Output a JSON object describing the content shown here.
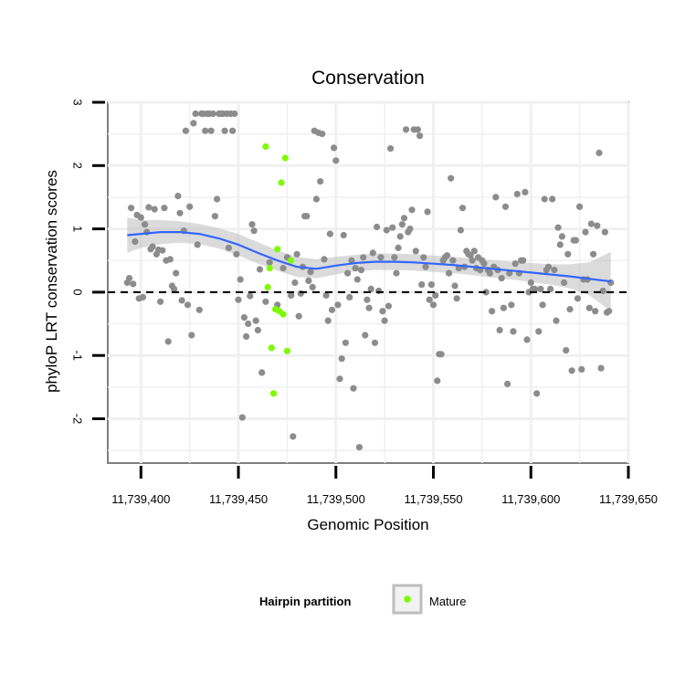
{
  "chart_data": {
    "type": "scatter",
    "title": "Conservation",
    "xlabel": "Genomic Position",
    "ylabel": "phyloP LRT conservation scores",
    "xlim": [
      11739383,
      11739650
    ],
    "ylim": [
      -2.7,
      3.0
    ],
    "grid": true,
    "x_ticks": [
      11739400,
      11739450,
      11739500,
      11739550,
      11739600,
      11739650
    ],
    "x_tick_labels": [
      "11,739,400",
      "11,739,450",
      "11,739,500",
      "11,739,550",
      "11,739,600",
      "11,739,650"
    ],
    "y_ticks": [
      -2,
      -1,
      0,
      1,
      2,
      3
    ],
    "y_tick_labels": [
      "-2",
      "-1",
      "0",
      "1",
      "2",
      "3"
    ],
    "reference_line": {
      "y": 0,
      "style": "dashed",
      "color": "#000000"
    },
    "colors": {
      "other": "#8c8c8c",
      "mature": "#7cfc00",
      "smooth": "#3366ff",
      "ribbon": "#bdbdbd",
      "panel_grid": "#f0f0f0",
      "frame": "#7f7f7f"
    },
    "legend": {
      "title": "Hairpin partition",
      "entries": [
        "Mature"
      ],
      "position": "bottom"
    },
    "series": [
      {
        "name": "",
        "color": "#8c8c8c",
        "points": [
          [
            11739393,
            0.15
          ],
          [
            11739394,
            0.22
          ],
          [
            11739395,
            1.33
          ],
          [
            11739396,
            0.13
          ],
          [
            11739397,
            0.8
          ],
          [
            11739398,
            1.22
          ],
          [
            11739399,
            -0.1
          ],
          [
            11739400,
            1.18
          ],
          [
            11739401,
            -0.08
          ],
          [
            11739402,
            1.07
          ],
          [
            11739403,
            0.95
          ],
          [
            11739404,
            1.34
          ],
          [
            11739405,
            0.68
          ],
          [
            11739406,
            0.72
          ],
          [
            11739407,
            1.31
          ],
          [
            11739408,
            0.6
          ],
          [
            11739409,
            0.67
          ],
          [
            11739410,
            -0.15
          ],
          [
            11739411,
            0.66
          ],
          [
            11739412,
            1.33
          ],
          [
            11739413,
            0.5
          ],
          [
            11739414,
            -0.78
          ],
          [
            11739415,
            0.52
          ],
          [
            11739416,
            0.1
          ],
          [
            11739417,
            0.05
          ],
          [
            11739418,
            0.3
          ],
          [
            11739419,
            1.52
          ],
          [
            11739420,
            1.25
          ],
          [
            11739421,
            -0.13
          ],
          [
            11739422,
            0.97
          ],
          [
            11739423,
            2.55
          ],
          [
            11739424,
            -0.2
          ],
          [
            11739425,
            1.35
          ],
          [
            11739426,
            -0.68
          ],
          [
            11739427,
            2.67
          ],
          [
            11739428,
            2.82
          ],
          [
            11739429,
            0.75
          ],
          [
            11739430,
            -0.28
          ],
          [
            11739431,
            2.82
          ],
          [
            11739432,
            2.82
          ],
          [
            11739433,
            2.55
          ],
          [
            11739434,
            2.82
          ],
          [
            11739435,
            2.82
          ],
          [
            11739436,
            2.55
          ],
          [
            11739437,
            2.82
          ],
          [
            11739438,
            1.2
          ],
          [
            11739439,
            1.47
          ],
          [
            11739440,
            2.82
          ],
          [
            11739441,
            2.82
          ],
          [
            11739442,
            2.82
          ],
          [
            11739443,
            2.55
          ],
          [
            11739444,
            2.82
          ],
          [
            11739445,
            0.7
          ],
          [
            11739446,
            2.82
          ],
          [
            11739447,
            2.55
          ],
          [
            11739448,
            2.82
          ],
          [
            11739449,
            0.6
          ],
          [
            11739450,
            -0.12
          ],
          [
            11739451,
            0.2
          ],
          [
            11739452,
            -1.98
          ],
          [
            11739453,
            -0.4
          ],
          [
            11739454,
            -0.7
          ],
          [
            11739455,
            -0.5
          ],
          [
            11739456,
            -0.06
          ],
          [
            11739457,
            1.07
          ],
          [
            11739458,
            0.97
          ],
          [
            11739459,
            -0.45
          ],
          [
            11739460,
            -0.6
          ],
          [
            11739461,
            0.36
          ],
          [
            11739462,
            -1.27
          ],
          [
            11739464,
            -0.15
          ],
          [
            11739466,
            0.47
          ],
          [
            11739470,
            -0.2
          ],
          [
            11739473,
            0.38
          ],
          [
            11739475,
            0.55
          ],
          [
            11739477,
            -0.05
          ],
          [
            11739478,
            -2.28
          ],
          [
            11739479,
            0.15
          ],
          [
            11739480,
            0.6
          ],
          [
            11739481,
            -0.38
          ],
          [
            11739482,
            -0.02
          ],
          [
            11739483,
            0.4
          ],
          [
            11739484,
            1.2
          ],
          [
            11739485,
            1.2
          ],
          [
            11739486,
            0.18
          ],
          [
            11739487,
            0.32
          ],
          [
            11739488,
            0.08
          ],
          [
            11739489,
            2.55
          ],
          [
            11739490,
            1.47
          ],
          [
            11739491,
            2.52
          ],
          [
            11739492,
            1.75
          ],
          [
            11739493,
            2.5
          ],
          [
            11739494,
            0.52
          ],
          [
            11739495,
            -0.05
          ],
          [
            11739496,
            -0.45
          ],
          [
            11739497,
            0.92
          ],
          [
            11739498,
            -0.28
          ],
          [
            11739499,
            2.28
          ],
          [
            11739500,
            2.08
          ],
          [
            11739501,
            -0.2
          ],
          [
            11739502,
            -1.37
          ],
          [
            11739503,
            -1.05
          ],
          [
            11739504,
            0.9
          ],
          [
            11739505,
            -0.8
          ],
          [
            11739506,
            0.3
          ],
          [
            11739507,
            -0.08
          ],
          [
            11739508,
            0.5
          ],
          [
            11739509,
            -1.52
          ],
          [
            11739510,
            0.38
          ],
          [
            11739511,
            0.2
          ],
          [
            11739512,
            -2.45
          ],
          [
            11739513,
            0.35
          ],
          [
            11739514,
            0.55
          ],
          [
            11739515,
            -0.68
          ],
          [
            11739516,
            -0.12
          ],
          [
            11739517,
            -0.25
          ],
          [
            11739518,
            0.05
          ],
          [
            11739519,
            0.62
          ],
          [
            11739520,
            -0.8
          ],
          [
            11739521,
            1.03
          ],
          [
            11739522,
            0.02
          ],
          [
            11739523,
            0.55
          ],
          [
            11739524,
            -0.3
          ],
          [
            11739525,
            -0.45
          ],
          [
            11739526,
            0.98
          ],
          [
            11739527,
            -0.22
          ],
          [
            11739528,
            2.27
          ],
          [
            11739529,
            1.02
          ],
          [
            11739530,
            0.55
          ],
          [
            11739531,
            0.3
          ],
          [
            11739532,
            0.7
          ],
          [
            11739533,
            0.88
          ],
          [
            11739534,
            1.07
          ],
          [
            11739535,
            1.17
          ],
          [
            11739536,
            2.57
          ],
          [
            11739537,
            0.95
          ],
          [
            11739538,
            1.0
          ],
          [
            11739539,
            1.3
          ],
          [
            11739540,
            2.57
          ],
          [
            11739541,
            0.65
          ],
          [
            11739542,
            2.57
          ],
          [
            11739543,
            2.47
          ],
          [
            11739544,
            0.12
          ],
          [
            11739545,
            0.55
          ],
          [
            11739546,
            0.4
          ],
          [
            11739547,
            1.27
          ],
          [
            11739548,
            -0.12
          ],
          [
            11739549,
            0.12
          ],
          [
            11739550,
            -0.2
          ],
          [
            11739551,
            -0.05
          ],
          [
            11739552,
            -1.4
          ],
          [
            11739553,
            -0.98
          ],
          [
            11739554,
            -0.98
          ],
          [
            11739555,
            0.5
          ],
          [
            11739556,
            0.55
          ],
          [
            11739557,
            0.58
          ],
          [
            11739558,
            0.3
          ],
          [
            11739559,
            1.8
          ],
          [
            11739560,
            0.5
          ],
          [
            11739561,
            0.1
          ],
          [
            11739562,
            -0.1
          ],
          [
            11739563,
            0.38
          ],
          [
            11739564,
            0.98
          ],
          [
            11739565,
            1.33
          ],
          [
            11739566,
            0.4
          ],
          [
            11739567,
            0.65
          ],
          [
            11739568,
            0.6
          ],
          [
            11739569,
            0.58
          ],
          [
            11739570,
            0.5
          ],
          [
            11739571,
            0.65
          ],
          [
            11739572,
            0.38
          ],
          [
            11739573,
            0.55
          ],
          [
            11739574,
            0.35
          ],
          [
            11739575,
            0.5
          ],
          [
            11739576,
            0.45
          ],
          [
            11739577,
            0.0
          ],
          [
            11739578,
            0.35
          ],
          [
            11739579,
            0.3
          ],
          [
            11739580,
            -0.3
          ],
          [
            11739581,
            0.4
          ],
          [
            11739582,
            1.5
          ],
          [
            11739583,
            0.35
          ],
          [
            11739584,
            -0.6
          ],
          [
            11739585,
            0.22
          ],
          [
            11739586,
            -0.25
          ],
          [
            11739587,
            1.35
          ],
          [
            11739588,
            -1.45
          ],
          [
            11739589,
            0.3
          ],
          [
            11739590,
            -0.2
          ],
          [
            11739591,
            -0.62
          ],
          [
            11739592,
            0.45
          ],
          [
            11739593,
            1.55
          ],
          [
            11739594,
            0.3
          ],
          [
            11739595,
            0.5
          ],
          [
            11739596,
            0.5
          ],
          [
            11739597,
            1.58
          ],
          [
            11739598,
            -0.75
          ],
          [
            11739599,
            0.0
          ],
          [
            11739600,
            0.15
          ],
          [
            11739601,
            0.05
          ],
          [
            11739602,
            0.05
          ],
          [
            11739603,
            -1.6
          ],
          [
            11739604,
            -0.62
          ],
          [
            11739605,
            0.05
          ],
          [
            11739606,
            -0.2
          ],
          [
            11739607,
            1.47
          ],
          [
            11739608,
            0.35
          ],
          [
            11739609,
            0.4
          ],
          [
            11739610,
            0.05
          ],
          [
            11739611,
            1.47
          ],
          [
            11739612,
            0.35
          ],
          [
            11739613,
            -0.45
          ],
          [
            11739614,
            1.02
          ],
          [
            11739615,
            0.75
          ],
          [
            11739616,
            0.88
          ],
          [
            11739617,
            0.15
          ],
          [
            11739618,
            -0.92
          ],
          [
            11739619,
            0.6
          ],
          [
            11739620,
            -0.27
          ],
          [
            11739621,
            -1.24
          ],
          [
            11739622,
            0.82
          ],
          [
            11739623,
            0.82
          ],
          [
            11739624,
            -0.1
          ],
          [
            11739625,
            1.35
          ],
          [
            11739626,
            -1.22
          ],
          [
            11739627,
            0.2
          ],
          [
            11739628,
            0.95
          ],
          [
            11739629,
            0.2
          ],
          [
            11739630,
            -0.25
          ],
          [
            11739631,
            1.08
          ],
          [
            11739632,
            0.6
          ],
          [
            11739633,
            -0.3
          ],
          [
            11739634,
            1.05
          ],
          [
            11739635,
            2.2
          ],
          [
            11739636,
            -1.2
          ],
          [
            11739637,
            0.02
          ],
          [
            11739638,
            0.95
          ],
          [
            11739639,
            -0.32
          ],
          [
            11739640,
            -0.3
          ],
          [
            11739641,
            0.15
          ]
        ]
      },
      {
        "name": "Mature",
        "color": "#7cfc00",
        "points": [
          [
            11739464,
            2.3
          ],
          [
            11739465,
            0.08
          ],
          [
            11739466,
            0.38
          ],
          [
            11739467,
            -0.88
          ],
          [
            11739468,
            -1.6
          ],
          [
            11739469,
            -0.27
          ],
          [
            11739470,
            0.68
          ],
          [
            11739471,
            -0.3
          ],
          [
            11739472,
            1.73
          ],
          [
            11739473,
            -0.35
          ],
          [
            11739474,
            2.12
          ],
          [
            11739475,
            -0.93
          ],
          [
            11739477,
            0.5
          ]
        ]
      }
    ],
    "smooth": {
      "x": [
        11739393,
        11739400,
        11739410,
        11739420,
        11739430,
        11739440,
        11739450,
        11739460,
        11739470,
        11739480,
        11739490,
        11739500,
        11739510,
        11739520,
        11739530,
        11739540,
        11739550,
        11739560,
        11739570,
        11739580,
        11739590,
        11739600,
        11739610,
        11739620,
        11739630,
        11739641
      ],
      "y": [
        0.9,
        0.92,
        0.95,
        0.95,
        0.92,
        0.85,
        0.75,
        0.62,
        0.5,
        0.4,
        0.37,
        0.42,
        0.46,
        0.48,
        0.48,
        0.47,
        0.45,
        0.43,
        0.4,
        0.37,
        0.34,
        0.31,
        0.28,
        0.25,
        0.21,
        0.17
      ],
      "lower": [
        0.62,
        0.7,
        0.76,
        0.78,
        0.76,
        0.69,
        0.58,
        0.45,
        0.34,
        0.24,
        0.22,
        0.28,
        0.33,
        0.35,
        0.35,
        0.34,
        0.32,
        0.3,
        0.27,
        0.23,
        0.2,
        0.16,
        0.12,
        0.06,
        -0.05,
        -0.3
      ],
      "upper": [
        1.18,
        1.14,
        1.14,
        1.12,
        1.08,
        1.01,
        0.92,
        0.79,
        0.66,
        0.56,
        0.52,
        0.56,
        0.59,
        0.61,
        0.61,
        0.6,
        0.58,
        0.56,
        0.53,
        0.51,
        0.48,
        0.46,
        0.44,
        0.44,
        0.47,
        0.64
      ]
    }
  }
}
